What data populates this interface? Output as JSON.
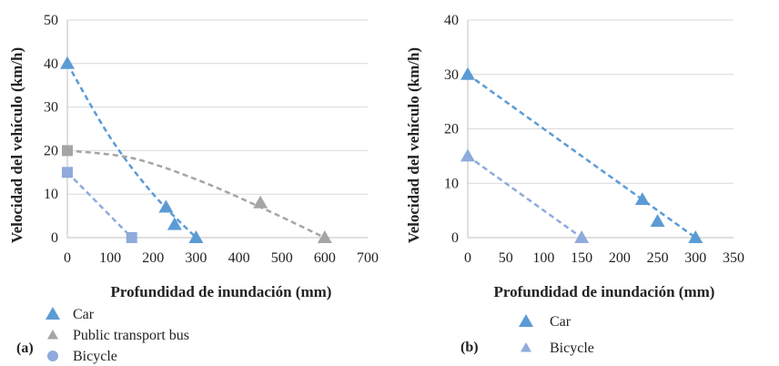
{
  "chart_data": [
    {
      "type": "scatter",
      "panel_label": "(a)",
      "xlabel": "Profundidad de inundación (mm)",
      "ylabel": "Velocidad del vehículo (km/h)",
      "xlim": [
        0,
        700
      ],
      "ylim": [
        0,
        50
      ],
      "xticks": [
        0,
        100,
        200,
        300,
        400,
        500,
        600,
        700
      ],
      "yticks": [
        0,
        10,
        20,
        30,
        40,
        50
      ],
      "grid": "horizontal",
      "legend": "bottom-left",
      "series": [
        {
          "name": "Car",
          "marker": "triangle",
          "color": "#5B9BD5",
          "x": [
            0,
            230,
            250,
            300
          ],
          "y": [
            40,
            7,
            3,
            0
          ],
          "trend": {
            "type": "curve",
            "points": [
              [
                0,
                40
              ],
              [
                100,
                23
              ],
              [
                200,
                10
              ],
              [
                300,
                0
              ]
            ]
          }
        },
        {
          "name": "Public transport bus",
          "marker": "triangle-small",
          "color": "#A5A5A5",
          "x": [
            0,
            450,
            600
          ],
          "y": [
            20,
            8,
            0
          ],
          "trend": {
            "type": "curve",
            "points": [
              [
                0,
                20
              ],
              [
                150,
                18.3
              ],
              [
                300,
                13.4
              ],
              [
                450,
                7
              ],
              [
                600,
                0
              ]
            ]
          }
        },
        {
          "name": "Bicycle",
          "marker": "circle",
          "color": "#8FAADC",
          "x": [
            0,
            150
          ],
          "y": [
            15,
            0
          ],
          "trend": {
            "type": "line",
            "points": [
              [
                0,
                15
              ],
              [
                150,
                0
              ]
            ]
          }
        }
      ]
    },
    {
      "type": "scatter",
      "panel_label": "(b)",
      "xlabel": "Profundidad de inundación (mm)",
      "ylabel": "Velocidad del vehículo (km/h)",
      "xlim": [
        0,
        350
      ],
      "ylim": [
        0,
        40
      ],
      "xticks": [
        0,
        50,
        100,
        150,
        200,
        250,
        300,
        350
      ],
      "yticks": [
        0,
        10,
        20,
        30,
        40
      ],
      "grid": "horizontal",
      "legend": "bottom-left",
      "series": [
        {
          "name": "Car",
          "marker": "triangle",
          "color": "#5B9BD5",
          "x": [
            0,
            230,
            250,
            300
          ],
          "y": [
            30,
            7,
            3,
            0
          ],
          "trend": {
            "type": "line",
            "points": [
              [
                0,
                30
              ],
              [
                300,
                0
              ]
            ]
          }
        },
        {
          "name": "Bicycle",
          "marker": "triangle-small",
          "color": "#8FAADC",
          "x": [
            0,
            150
          ],
          "y": [
            15,
            0
          ],
          "trend": {
            "type": "line",
            "points": [
              [
                0,
                15
              ],
              [
                150,
                0
              ]
            ]
          }
        }
      ]
    }
  ]
}
